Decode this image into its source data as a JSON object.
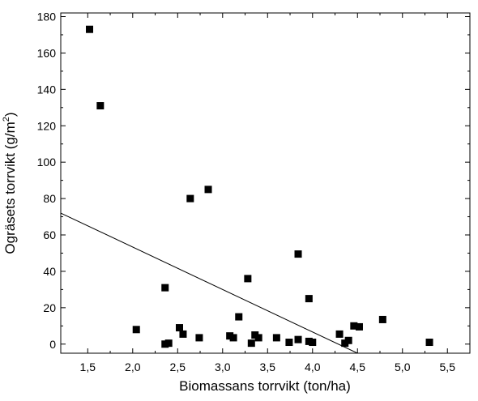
{
  "chart_data": {
    "type": "scatter",
    "title": "",
    "xlabel": "Biomassans torrvikt (ton/ha)",
    "ylabel": "Ogräsets torrvikt (g/m²)",
    "ylabel_parts": {
      "before": "Ogräsets torrvikt (g/m",
      "sup": "2",
      "after": ")"
    },
    "xlim": [
      1.2,
      5.75
    ],
    "ylim": [
      -5,
      182
    ],
    "x_ticks": [
      1.5,
      2.0,
      2.5,
      3.0,
      3.5,
      4.0,
      4.5,
      5.0,
      5.5
    ],
    "x_tick_labels": [
      "1,5",
      "2,0",
      "2,5",
      "3,0",
      "3,5",
      "4,0",
      "4,5",
      "5,0",
      "5,5"
    ],
    "y_ticks": [
      0,
      20,
      40,
      60,
      80,
      100,
      120,
      140,
      160,
      180
    ],
    "y_tick_labels": [
      "0",
      "20",
      "40",
      "60",
      "80",
      "100",
      "120",
      "140",
      "160",
      "180"
    ],
    "grid": false,
    "legend": "none",
    "marker": "square",
    "colors": {
      "points": "#000000",
      "line": "#000000",
      "axes": "#000000"
    },
    "series": [
      {
        "points": [
          [
            1.52,
            173
          ],
          [
            1.64,
            131
          ],
          [
            2.04,
            8
          ],
          [
            2.36,
            31
          ],
          [
            2.36,
            0
          ],
          [
            2.4,
            0.5
          ],
          [
            2.52,
            9
          ],
          [
            2.56,
            5.5
          ],
          [
            2.64,
            80
          ],
          [
            2.74,
            3.5
          ],
          [
            2.84,
            85
          ],
          [
            3.08,
            4.5
          ],
          [
            3.12,
            3.5
          ],
          [
            3.18,
            15
          ],
          [
            3.28,
            36
          ],
          [
            3.32,
            0.5
          ],
          [
            3.36,
            5
          ],
          [
            3.4,
            3.5
          ],
          [
            3.6,
            3.5
          ],
          [
            3.74,
            1
          ],
          [
            3.84,
            49.5
          ],
          [
            3.84,
            2.5
          ],
          [
            3.96,
            25
          ],
          [
            3.96,
            1.5
          ],
          [
            4.0,
            1
          ],
          [
            4.3,
            5.5
          ],
          [
            4.36,
            0.5
          ],
          [
            4.4,
            2
          ],
          [
            4.46,
            10
          ],
          [
            4.52,
            9.5
          ],
          [
            4.78,
            13.5
          ],
          [
            5.3,
            1
          ]
        ]
      }
    ],
    "trendline": {
      "x": [
        1.2,
        4.5
      ],
      "y": [
        72,
        -5
      ]
    }
  }
}
